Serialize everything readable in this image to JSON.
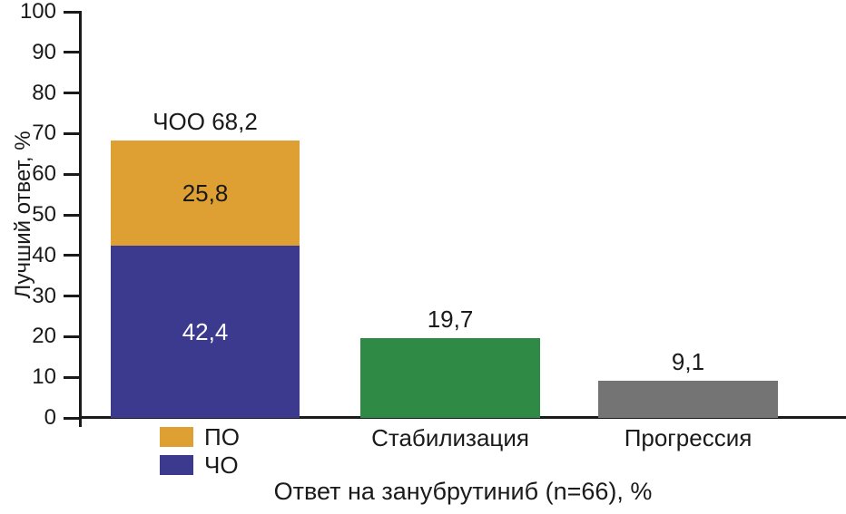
{
  "chart_data": {
    "type": "bar",
    "stacked": true,
    "title": "",
    "ylabel": "Лучший ответ, %",
    "xlabel": "Ответ на занубрутиниб (n=66), %",
    "ylim": [
      0,
      100
    ],
    "yticks": [
      0,
      10,
      20,
      30,
      40,
      50,
      60,
      70,
      80,
      90,
      100
    ],
    "grid": false,
    "legend_position": "below-first-bar",
    "colors": {
      "orange": "#DEA032",
      "blue": "#3B3A8F",
      "green": "#2F8A46",
      "gray": "#747474",
      "axis": "#1A1A1A",
      "label_on_blue": "#FFFFFF",
      "label_on_orange": "#1A1A1A"
    },
    "bars": [
      {
        "category_label": "",
        "total_label": "ЧОО 68,2",
        "total_value": 68.2,
        "segments": [
          {
            "name": "ЧО",
            "value": 42.4,
            "label": "42,4",
            "color": "#3B3A8F",
            "text_color": "#FFFFFF"
          },
          {
            "name": "ПО",
            "value": 25.8,
            "label": "25,8",
            "color": "#DEA032",
            "text_color": "#1A1A1A"
          }
        ]
      },
      {
        "category_label": "Стабилизация",
        "total_label": "19,7",
        "total_value": 19.7,
        "segments": [
          {
            "name": "Стабилизация",
            "value": 19.7,
            "label": "",
            "color": "#2F8A46",
            "text_color": "#FFFFFF"
          }
        ]
      },
      {
        "category_label": "Прогрессия",
        "total_label": "9,1",
        "total_value": 9.1,
        "segments": [
          {
            "name": "Прогрессия",
            "value": 9.1,
            "label": "",
            "color": "#747474",
            "text_color": "#FFFFFF"
          }
        ]
      }
    ],
    "legend": [
      {
        "label": "ПО",
        "color": "#DEA032"
      },
      {
        "label": "ЧО",
        "color": "#3B3A8F"
      }
    ]
  }
}
